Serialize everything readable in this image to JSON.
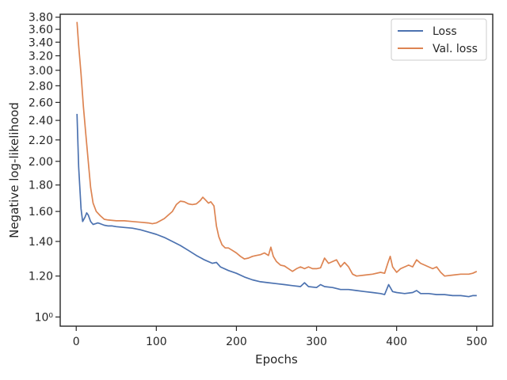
{
  "chart_data": {
    "type": "line",
    "title": "",
    "xlabel": "Epochs",
    "ylabel": "Negative log-likelihood",
    "yscale": "log",
    "xlim": [
      -20,
      520
    ],
    "ylim": [
      0.96,
      3.85
    ],
    "grid": false,
    "legend_position": "top-right",
    "x_ticks": [
      0,
      100,
      200,
      300,
      400,
      500
    ],
    "x_tick_labels": [
      "0",
      "100",
      "200",
      "300",
      "400",
      "500"
    ],
    "y_ticks": [
      1.0,
      1.2,
      1.4,
      1.6,
      1.8,
      2.0,
      2.2,
      2.4,
      2.6,
      2.8,
      3.0,
      3.2,
      3.4,
      3.6,
      3.8
    ],
    "y_tick_labels": [
      "10⁰",
      "1.20",
      "1.40",
      "1.60",
      "1.80",
      "2.00",
      "2.20",
      "2.40",
      "2.60",
      "2.80",
      "3.00",
      "3.20",
      "3.40",
      "3.60",
      "3.80"
    ],
    "series": [
      {
        "name": "Loss",
        "color": "#4c72b0",
        "x": [
          1,
          3,
          6,
          8,
          11,
          13,
          15,
          18,
          21,
          24,
          27,
          30,
          35,
          40,
          45,
          50,
          60,
          70,
          80,
          90,
          100,
          110,
          120,
          130,
          140,
          150,
          160,
          170,
          175,
          180,
          190,
          200,
          210,
          220,
          230,
          240,
          250,
          260,
          270,
          280,
          285,
          290,
          300,
          305,
          310,
          320,
          330,
          340,
          350,
          360,
          370,
          380,
          385,
          390,
          395,
          400,
          410,
          420,
          425,
          430,
          440,
          450,
          460,
          470,
          480,
          490,
          495,
          500
        ],
        "y": [
          2.47,
          1.95,
          1.62,
          1.53,
          1.56,
          1.59,
          1.575,
          1.53,
          1.51,
          1.515,
          1.52,
          1.515,
          1.505,
          1.5,
          1.5,
          1.495,
          1.49,
          1.485,
          1.475,
          1.46,
          1.445,
          1.425,
          1.4,
          1.375,
          1.345,
          1.315,
          1.29,
          1.27,
          1.275,
          1.25,
          1.23,
          1.215,
          1.195,
          1.18,
          1.17,
          1.165,
          1.16,
          1.155,
          1.15,
          1.145,
          1.165,
          1.145,
          1.14,
          1.155,
          1.145,
          1.14,
          1.13,
          1.13,
          1.125,
          1.12,
          1.115,
          1.11,
          1.105,
          1.155,
          1.12,
          1.115,
          1.11,
          1.115,
          1.125,
          1.11,
          1.11,
          1.105,
          1.105,
          1.1,
          1.1,
          1.095,
          1.1,
          1.1
        ]
      },
      {
        "name": "Val. loss",
        "color": "#dd8452",
        "x": [
          1,
          3,
          6,
          9,
          12,
          15,
          18,
          21,
          25,
          30,
          35,
          40,
          50,
          60,
          70,
          80,
          90,
          95,
          100,
          110,
          120,
          125,
          130,
          135,
          140,
          145,
          150,
          155,
          158,
          162,
          165,
          168,
          172,
          175,
          178,
          182,
          186,
          190,
          195,
          200,
          205,
          210,
          215,
          220,
          225,
          230,
          235,
          240,
          243,
          246,
          250,
          255,
          260,
          265,
          270,
          275,
          280,
          285,
          290,
          295,
          300,
          305,
          310,
          315,
          320,
          325,
          330,
          335,
          340,
          345,
          350,
          360,
          370,
          380,
          385,
          389,
          392,
          395,
          400,
          405,
          410,
          415,
          420,
          425,
          430,
          435,
          440,
          445,
          450,
          455,
          460,
          470,
          480,
          490,
          495,
          500
        ],
        "y": [
          3.72,
          3.35,
          2.95,
          2.55,
          2.25,
          2.0,
          1.78,
          1.66,
          1.6,
          1.57,
          1.545,
          1.54,
          1.535,
          1.535,
          1.53,
          1.525,
          1.52,
          1.515,
          1.52,
          1.55,
          1.6,
          1.65,
          1.675,
          1.67,
          1.655,
          1.65,
          1.655,
          1.68,
          1.705,
          1.68,
          1.66,
          1.67,
          1.64,
          1.5,
          1.43,
          1.38,
          1.36,
          1.36,
          1.345,
          1.33,
          1.31,
          1.295,
          1.3,
          1.31,
          1.315,
          1.32,
          1.33,
          1.315,
          1.365,
          1.31,
          1.28,
          1.26,
          1.255,
          1.24,
          1.225,
          1.24,
          1.25,
          1.24,
          1.25,
          1.24,
          1.24,
          1.245,
          1.3,
          1.27,
          1.28,
          1.29,
          1.25,
          1.275,
          1.25,
          1.21,
          1.2,
          1.205,
          1.21,
          1.22,
          1.215,
          1.27,
          1.31,
          1.25,
          1.22,
          1.24,
          1.25,
          1.26,
          1.25,
          1.29,
          1.27,
          1.26,
          1.25,
          1.24,
          1.25,
          1.22,
          1.2,
          1.205,
          1.21,
          1.21,
          1.215,
          1.225
        ]
      }
    ]
  }
}
